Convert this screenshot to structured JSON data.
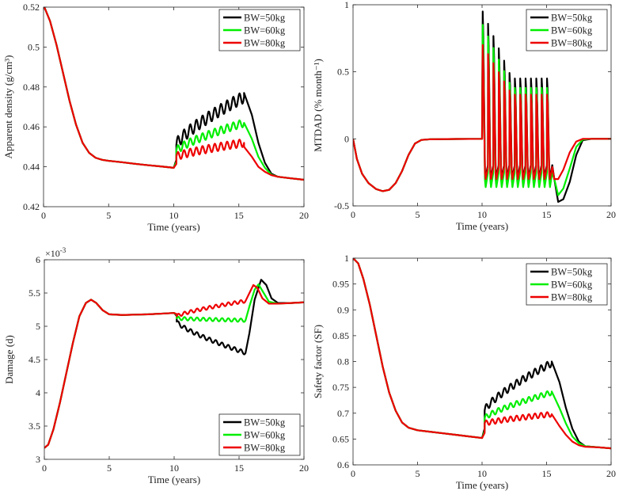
{
  "chart_data": [
    {
      "id": "p1",
      "type": "line",
      "ylabel": "Apparent density (g/cm³)",
      "xlabel": "Time (years)",
      "xlim": [
        0,
        20
      ],
      "ylim": [
        0.42,
        0.52
      ],
      "xticks": [
        0,
        5,
        10,
        15,
        20
      ],
      "yticks": [
        0.42,
        0.44,
        0.46,
        0.48,
        0.5,
        0.52
      ],
      "ytick_labels": [
        "0.42",
        "0.44",
        "0.46",
        "0.48",
        "0.5",
        "0.52"
      ],
      "legend_position": "top-right",
      "series": [
        {
          "name": "BW=50kg",
          "color": "#000000"
        },
        {
          "name": "BW=60kg",
          "color": "#00ee00"
        },
        {
          "name": "BW=80kg",
          "color": "#ee0000"
        }
      ],
      "common": [
        [
          0,
          0.521
        ],
        [
          0.5,
          0.513
        ],
        [
          1,
          0.501
        ],
        [
          1.5,
          0.487
        ],
        [
          2,
          0.473
        ],
        [
          2.5,
          0.461
        ],
        [
          3,
          0.452
        ],
        [
          3.5,
          0.447
        ],
        [
          4,
          0.4445
        ],
        [
          4.5,
          0.4435
        ],
        [
          5,
          0.443
        ],
        [
          6,
          0.4423
        ],
        [
          7,
          0.4415
        ],
        [
          8,
          0.4408
        ],
        [
          9,
          0.4402
        ],
        [
          10,
          0.4395
        ]
      ],
      "segments": {
        "BW=50kg": {
          "start": 10.2,
          "end": 15.4,
          "y0": 0.451,
          "y1": 0.475,
          "amp": 0.003,
          "after": [
            [
              15.4,
              0.477
            ],
            [
              16,
              0.466
            ],
            [
              16.5,
              0.452
            ],
            [
              17,
              0.442
            ],
            [
              17.5,
              0.4365
            ],
            [
              18,
              0.435
            ],
            [
              19,
              0.4342
            ],
            [
              20,
              0.4335
            ]
          ]
        },
        "BW=60kg": {
          "start": 10.2,
          "end": 15.4,
          "y0": 0.448,
          "y1": 0.462,
          "amp": 0.002,
          "after": [
            [
              15.4,
              0.462
            ],
            [
              16,
              0.454
            ],
            [
              16.5,
              0.445
            ],
            [
              17,
              0.4395
            ],
            [
              17.5,
              0.436
            ],
            [
              18,
              0.435
            ],
            [
              19,
              0.4342
            ],
            [
              20,
              0.4335
            ]
          ]
        },
        "BW=80kg": {
          "start": 10.2,
          "end": 15.4,
          "y0": 0.445,
          "y1": 0.452,
          "amp": 0.002,
          "after": [
            [
              15.4,
              0.45
            ],
            [
              16,
              0.445
            ],
            [
              16.5,
              0.44
            ],
            [
              17,
              0.4375
            ],
            [
              17.5,
              0.4358
            ],
            [
              18,
              0.435
            ],
            [
              19,
              0.4342
            ],
            [
              20,
              0.4335
            ]
          ]
        }
      }
    },
    {
      "id": "p2",
      "type": "line",
      "ylabel": "MTDAD (% month⁻¹)",
      "xlabel": "Time (years)",
      "xlim": [
        0,
        20
      ],
      "ylim": [
        -0.5,
        1
      ],
      "xticks": [
        0,
        5,
        10,
        15,
        20
      ],
      "yticks": [
        -0.5,
        0,
        0.5,
        1
      ],
      "ytick_labels": [
        "-0.5",
        "0",
        "0.5",
        "1"
      ],
      "legend_position": "top-right",
      "series": [
        {
          "name": "BW=50kg",
          "color": "#000000"
        },
        {
          "name": "BW=60kg",
          "color": "#00ee00"
        },
        {
          "name": "BW=80kg",
          "color": "#ee0000"
        }
      ],
      "common": [
        [
          0,
          0
        ],
        [
          0.3,
          -0.15
        ],
        [
          0.7,
          -0.26
        ],
        [
          1.2,
          -0.33
        ],
        [
          1.8,
          -0.375
        ],
        [
          2.3,
          -0.39
        ],
        [
          2.8,
          -0.38
        ],
        [
          3.3,
          -0.33
        ],
        [
          3.8,
          -0.24
        ],
        [
          4.3,
          -0.12
        ],
        [
          4.8,
          -0.035
        ],
        [
          5.3,
          -0.008
        ],
        [
          6,
          -0.003
        ],
        [
          8,
          -0.001
        ],
        [
          10,
          0
        ]
      ],
      "segments": {
        "BW=50kg": {
          "peak0": 0.95,
          "peak1": 0.45,
          "trough": -0.28,
          "end": 15.45,
          "after": [
            [
              15.6,
              -0.3
            ],
            [
              15.9,
              -0.47
            ],
            [
              16.3,
              -0.45
            ],
            [
              16.8,
              -0.32
            ],
            [
              17.3,
              -0.12
            ],
            [
              17.8,
              -0.01
            ],
            [
              18.5,
              0
            ],
            [
              20,
              0
            ]
          ]
        },
        "BW=60kg": {
          "peak0": 0.85,
          "peak1": 0.38,
          "trough": -0.36,
          "end": 15.45,
          "after": [
            [
              15.6,
              -0.3
            ],
            [
              15.9,
              -0.42
            ],
            [
              16.3,
              -0.37
            ],
            [
              16.8,
              -0.22
            ],
            [
              17.3,
              -0.06
            ],
            [
              17.8,
              -0.005
            ],
            [
              18.5,
              0
            ],
            [
              20,
              0
            ]
          ]
        },
        "BW=80kg": {
          "peak0": 0.7,
          "peak1": 0.33,
          "trough": -0.3,
          "end": 15.45,
          "after": [
            [
              15.6,
              -0.3
            ],
            [
              15.9,
              -0.3
            ],
            [
              16.3,
              -0.23
            ],
            [
              16.8,
              -0.1
            ],
            [
              17.3,
              -0.02
            ],
            [
              17.8,
              0
            ],
            [
              18.5,
              0
            ],
            [
              20,
              0
            ]
          ]
        }
      }
    },
    {
      "id": "p3",
      "type": "line",
      "ylabel": "Damage (d)",
      "xlabel": "Time (years)",
      "xlim": [
        0,
        20
      ],
      "ylim": [
        3,
        6
      ],
      "xticks": [
        0,
        5,
        10,
        15,
        20
      ],
      "yticks": [
        3,
        3.5,
        4,
        4.5,
        5,
        5.5,
        6
      ],
      "ytick_labels": [
        "3",
        "3.5",
        "4",
        "4.5",
        "5",
        "5.5",
        "6"
      ],
      "y_exponent": "×10",
      "y_exponent_power": "-3",
      "legend_position": "bottom-right",
      "series": [
        {
          "name": "BW=50kg",
          "color": "#000000"
        },
        {
          "name": "BW=60kg",
          "color": "#00ee00"
        },
        {
          "name": "BW=80kg",
          "color": "#ee0000"
        }
      ],
      "common": [
        [
          0,
          3.17
        ],
        [
          0.3,
          3.22
        ],
        [
          0.7,
          3.45
        ],
        [
          1.2,
          3.85
        ],
        [
          1.7,
          4.3
        ],
        [
          2.2,
          4.75
        ],
        [
          2.7,
          5.15
        ],
        [
          3.2,
          5.35
        ],
        [
          3.6,
          5.4
        ],
        [
          4,
          5.35
        ],
        [
          4.5,
          5.24
        ],
        [
          5,
          5.18
        ],
        [
          6,
          5.17
        ],
        [
          7,
          5.175
        ],
        [
          8,
          5.18
        ],
        [
          9,
          5.19
        ],
        [
          10,
          5.2
        ]
      ],
      "segments": {
        "BW=50kg": {
          "start": 10.2,
          "end": 15.5,
          "y0": 5.07,
          "y1": 4.6,
          "amp": 0.03,
          "after": [
            [
              15.5,
              4.6
            ],
            [
              15.8,
              4.9
            ],
            [
              16.2,
              5.4
            ],
            [
              16.7,
              5.7
            ],
            [
              17.1,
              5.62
            ],
            [
              17.5,
              5.42
            ],
            [
              18,
              5.35
            ],
            [
              19,
              5.35
            ],
            [
              20,
              5.36
            ]
          ]
        },
        "BW=60kg": {
          "start": 10.2,
          "end": 15.5,
          "y0": 5.12,
          "y1": 5.09,
          "amp": 0.025,
          "after": [
            [
              15.5,
              5.09
            ],
            [
              15.8,
              5.3
            ],
            [
              16.2,
              5.55
            ],
            [
              16.5,
              5.63
            ],
            [
              16.9,
              5.5
            ],
            [
              17.3,
              5.37
            ],
            [
              18,
              5.34
            ],
            [
              19,
              5.35
            ],
            [
              20,
              5.36
            ]
          ]
        },
        "BW=80kg": {
          "start": 10.2,
          "end": 15.5,
          "y0": 5.15,
          "y1": 5.38,
          "amp": 0.025,
          "after": [
            [
              15.5,
              5.38
            ],
            [
              15.8,
              5.5
            ],
            [
              16.1,
              5.62
            ],
            [
              16.4,
              5.58
            ],
            [
              16.8,
              5.42
            ],
            [
              17.3,
              5.34
            ],
            [
              18,
              5.34
            ],
            [
              19,
              5.35
            ],
            [
              20,
              5.36
            ]
          ]
        }
      }
    },
    {
      "id": "p4",
      "type": "line",
      "ylabel": "Safety factor (SF)",
      "xlabel": "Time (years)",
      "xlim": [
        0,
        20
      ],
      "ylim": [
        0.6,
        1.0
      ],
      "xticks": [
        0,
        5,
        10,
        15,
        20
      ],
      "yticks": [
        0.6,
        0.65,
        0.7,
        0.75,
        0.8,
        0.85,
        0.9,
        0.95,
        1.0
      ],
      "ytick_labels": [
        "0.6",
        "0.65",
        "0.7",
        "0.75",
        "0.8",
        "0.85",
        "0.9",
        "0.95",
        "1"
      ],
      "legend_position": "top-right",
      "series": [
        {
          "name": "BW=50kg",
          "color": "#000000"
        },
        {
          "name": "BW=60kg",
          "color": "#00ee00"
        },
        {
          "name": "BW=80kg",
          "color": "#ee0000"
        }
      ],
      "common": [
        [
          0,
          1.0
        ],
        [
          0.4,
          0.99
        ],
        [
          0.8,
          0.96
        ],
        [
          1.3,
          0.91
        ],
        [
          1.8,
          0.85
        ],
        [
          2.3,
          0.79
        ],
        [
          2.8,
          0.74
        ],
        [
          3.3,
          0.705
        ],
        [
          3.8,
          0.682
        ],
        [
          4.3,
          0.672
        ],
        [
          5,
          0.667
        ],
        [
          6,
          0.664
        ],
        [
          7,
          0.661
        ],
        [
          8,
          0.658
        ],
        [
          9,
          0.655
        ],
        [
          10,
          0.652
        ]
      ],
      "segments": {
        "BW=50kg": {
          "start": 10.2,
          "end": 15.4,
          "y0": 0.705,
          "y1": 0.797,
          "amp": 0.007,
          "after": [
            [
              15.4,
              0.8
            ],
            [
              16,
              0.76
            ],
            [
              16.5,
              0.71
            ],
            [
              17,
              0.67
            ],
            [
              17.5,
              0.645
            ],
            [
              18,
              0.636
            ],
            [
              19,
              0.634
            ],
            [
              20,
              0.632
            ]
          ]
        },
        "BW=60kg": {
          "start": 10.2,
          "end": 15.4,
          "y0": 0.69,
          "y1": 0.74,
          "amp": 0.005,
          "after": [
            [
              15.4,
              0.742
            ],
            [
              16,
              0.71
            ],
            [
              16.5,
              0.68
            ],
            [
              17,
              0.655
            ],
            [
              17.5,
              0.642
            ],
            [
              18,
              0.636
            ],
            [
              19,
              0.634
            ],
            [
              20,
              0.632
            ]
          ]
        },
        "BW=80kg": {
          "start": 10.2,
          "end": 15.4,
          "y0": 0.68,
          "y1": 0.698,
          "amp": 0.005,
          "after": [
            [
              15.4,
              0.698
            ],
            [
              16,
              0.675
            ],
            [
              16.5,
              0.658
            ],
            [
              17,
              0.645
            ],
            [
              17.5,
              0.638
            ],
            [
              18,
              0.635
            ],
            [
              19,
              0.634
            ],
            [
              20,
              0.632
            ]
          ]
        }
      }
    }
  ]
}
